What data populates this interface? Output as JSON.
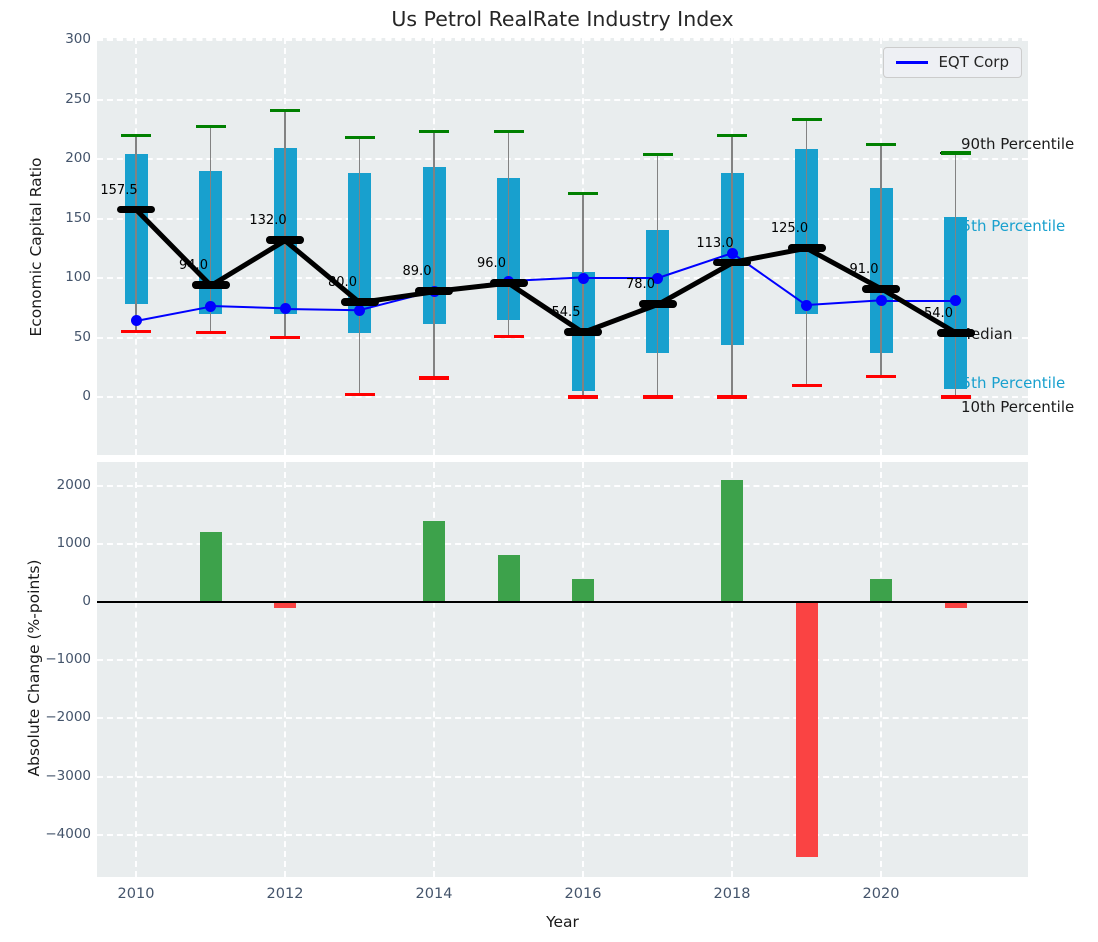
{
  "title": "Us Petrol RealRate Industry Index",
  "legend": {
    "eqt_label": "EQT Corp"
  },
  "annotations": {
    "p90": "90th Percentile",
    "p75": "75th Percentile",
    "median": "Median",
    "p25": "25th Percentile",
    "p10": "10th Percentile"
  },
  "top_axis": {
    "ylabel": "Economic Capital Ratio",
    "ytick_labels": [
      "300",
      "250",
      "200",
      "150",
      "100",
      "50",
      "0"
    ],
    "ytick_values": [
      300,
      250,
      200,
      150,
      100,
      50,
      0
    ]
  },
  "bottom_axis": {
    "ylabel": "Absolute Change (%-points)",
    "xlabel": "Year",
    "ytick_labels": [
      "2000",
      "1000",
      "0",
      "−1000",
      "−2000",
      "−3000",
      "−4000"
    ],
    "ytick_values": [
      2000,
      1000,
      0,
      -1000,
      -2000,
      -3000,
      -4000
    ],
    "xtick_labels": [
      "2010",
      "2012",
      "2014",
      "2016",
      "2018",
      "2020"
    ],
    "xtick_years": [
      2010,
      2012,
      2014,
      2016,
      2018,
      2020
    ]
  },
  "colors": {
    "plot_bg": "#e9edee",
    "grid": "#ffffff",
    "tick": "#44546b",
    "text": "#262626",
    "box": "#18a0ce",
    "whisker": "#828282",
    "cap_high": "#008000",
    "cap_low": "#ff0000",
    "median": "#000000",
    "eqt_line": "#0000ff",
    "bar_positive": "#3da24b",
    "bar_negative": "#fa4343"
  },
  "chart_data": [
    {
      "type": "box-whisker-with-line",
      "title": "Us Petrol RealRate Industry Index",
      "ylabel": "Economic Capital Ratio",
      "ylim": [
        -49,
        302
      ],
      "grid": true,
      "legend_position": "upper right",
      "years": [
        2010,
        2011,
        2012,
        2013,
        2014,
        2015,
        2016,
        2017,
        2018,
        2019,
        2020,
        2021
      ],
      "series": [
        {
          "name": "90th Percentile",
          "role": "whisker_high",
          "color": "#008000",
          "values": [
            220,
            227,
            241,
            218,
            223,
            223,
            171,
            204,
            220,
            233,
            212,
            205
          ]
        },
        {
          "name": "75th Percentile",
          "role": "box_top",
          "color": "#18a0ce",
          "values": [
            204,
            190,
            209,
            188,
            193,
            184,
            105,
            140,
            188,
            208,
            176,
            151
          ]
        },
        {
          "name": "Median",
          "role": "median",
          "color": "#000000",
          "values": [
            157.5,
            94.0,
            132.0,
            80.0,
            89.0,
            96.0,
            54.5,
            78.0,
            113.0,
            125.0,
            91.0,
            54.0
          ],
          "labels": [
            "157.5",
            "94.0",
            "132.0",
            "80.0",
            "89.0",
            "96.0",
            "54.5",
            "78.0",
            "113.0",
            "125.0",
            "91.0",
            "54.0"
          ]
        },
        {
          "name": "25th Percentile",
          "role": "box_bottom",
          "color": "#18a0ce",
          "values": [
            78,
            70,
            70,
            54,
            61,
            65,
            5,
            37,
            44,
            70,
            37,
            7
          ]
        },
        {
          "name": "10th Percentile",
          "role": "whisker_low",
          "color": "#ff0000",
          "values": [
            55,
            54,
            50,
            2,
            16,
            51,
            0,
            0,
            0,
            10,
            17,
            0
          ]
        },
        {
          "name": "EQT Corp",
          "role": "line",
          "color": "#0000ff",
          "values": [
            64,
            76,
            74,
            73,
            89,
            97,
            100,
            100,
            121,
            77,
            81,
            81
          ]
        }
      ]
    },
    {
      "type": "bar",
      "ylabel": "Absolute Change (%-points)",
      "xlabel": "Year",
      "ylim": [
        -4725,
        2405
      ],
      "grid": true,
      "years": [
        2010,
        2011,
        2012,
        2013,
        2014,
        2015,
        2016,
        2017,
        2018,
        2019,
        2020,
        2021
      ],
      "values": [
        0,
        1200,
        -100,
        0,
        1400,
        800,
        400,
        0,
        2100,
        -4380,
        400,
        -100
      ],
      "positive_color": "#3da24b",
      "negative_color": "#fa4343"
    }
  ]
}
